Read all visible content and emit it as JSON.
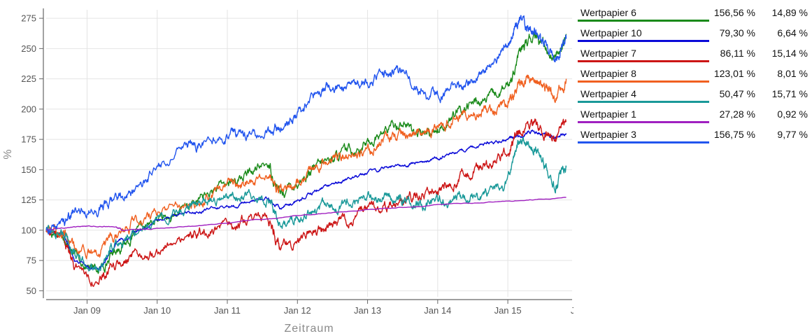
{
  "chart_data": {
    "type": "line",
    "title": "",
    "xlabel": "Zeitraum",
    "ylabel": "%",
    "x_range": [
      "2008-06",
      "2015-12"
    ],
    "ylim": [
      45,
      282
    ],
    "y_ticks": [
      50,
      75,
      100,
      125,
      150,
      175,
      200,
      225,
      250,
      275
    ],
    "x_ticks": [
      "Jan 09",
      "Jan 10",
      "Jan 11",
      "Jan 12",
      "Jan 13",
      "Jan 14",
      "Jan 15",
      "Jan"
    ],
    "x_tick_dates": [
      "2009-01",
      "2010-01",
      "2011-01",
      "2012-01",
      "2013-01",
      "2014-01",
      "2015-01",
      "2016-01"
    ],
    "grid": true,
    "legend_position": "right",
    "series": [
      {
        "name": "Wertpapier 6",
        "color": "#1a8a1a",
        "value1": "156,56 %",
        "value2": "14,89 %",
        "x": [
          "2008-06",
          "2008-09",
          "2008-11",
          "2009-03",
          "2009-06",
          "2009-09",
          "2010-01",
          "2010-06",
          "2010-09",
          "2011-01",
          "2011-04",
          "2011-08",
          "2011-10",
          "2012-01",
          "2012-04",
          "2012-07",
          "2012-10",
          "2013-01",
          "2013-04",
          "2013-07",
          "2013-10",
          "2014-01",
          "2014-04",
          "2014-07",
          "2014-10",
          "2015-01",
          "2015-03",
          "2015-05",
          "2015-07",
          "2015-09",
          "2015-11"
        ],
        "y": [
          100,
          97,
          78,
          66,
          85,
          95,
          108,
          118,
          128,
          138,
          145,
          155,
          130,
          140,
          150,
          160,
          166,
          172,
          182,
          190,
          178,
          184,
          195,
          205,
          208,
          218,
          246,
          258,
          255,
          242,
          262
        ]
      },
      {
        "name": "Wertpapier 10",
        "color": "#0a0ad8",
        "value1": "79,30 %",
        "value2": "6,64 %",
        "x": [
          "2008-06",
          "2008-09",
          "2008-11",
          "2009-03",
          "2009-06",
          "2009-09",
          "2010-01",
          "2010-06",
          "2010-09",
          "2011-01",
          "2011-04",
          "2011-08",
          "2011-10",
          "2012-01",
          "2012-04",
          "2012-07",
          "2012-10",
          "2013-01",
          "2013-04",
          "2013-07",
          "2013-10",
          "2014-01",
          "2014-04",
          "2014-07",
          "2014-10",
          "2015-01",
          "2015-03",
          "2015-05",
          "2015-07",
          "2015-09",
          "2015-11"
        ],
        "y": [
          100,
          97,
          74,
          68,
          88,
          98,
          108,
          113,
          116,
          120,
          123,
          126,
          118,
          124,
          132,
          138,
          143,
          148,
          152,
          154,
          156,
          160,
          164,
          168,
          172,
          175,
          178,
          182,
          179,
          176,
          180
        ]
      },
      {
        "name": "Wertpapier 7",
        "color": "#cc1515",
        "value1": "86,11 %",
        "value2": "15,14 %",
        "x": [
          "2008-06",
          "2008-09",
          "2008-11",
          "2009-03",
          "2009-06",
          "2009-09",
          "2010-01",
          "2010-06",
          "2010-09",
          "2011-01",
          "2011-04",
          "2011-08",
          "2011-10",
          "2012-01",
          "2012-04",
          "2012-07",
          "2012-10",
          "2013-01",
          "2013-04",
          "2013-07",
          "2013-10",
          "2014-01",
          "2014-04",
          "2014-07",
          "2014-10",
          "2015-01",
          "2015-03",
          "2015-05",
          "2015-07",
          "2015-09",
          "2015-11"
        ],
        "y": [
          100,
          95,
          70,
          58,
          70,
          76,
          85,
          93,
          97,
          103,
          106,
          110,
          85,
          93,
          100,
          103,
          110,
          115,
          120,
          126,
          130,
          136,
          140,
          148,
          155,
          165,
          185,
          190,
          182,
          175,
          190
        ]
      },
      {
        "name": "Wertpapier 8",
        "color": "#f06020",
        "value1": "123,01 %",
        "value2": "8,01 %",
        "x": [
          "2008-06",
          "2008-09",
          "2008-11",
          "2009-03",
          "2009-06",
          "2009-09",
          "2010-01",
          "2010-06",
          "2010-09",
          "2011-01",
          "2011-04",
          "2011-08",
          "2011-10",
          "2012-01",
          "2012-04",
          "2012-07",
          "2012-10",
          "2013-01",
          "2013-04",
          "2013-07",
          "2013-10",
          "2014-01",
          "2014-04",
          "2014-07",
          "2014-10",
          "2015-01",
          "2015-03",
          "2015-05",
          "2015-07",
          "2015-09",
          "2015-11"
        ],
        "y": [
          100,
          98,
          85,
          80,
          95,
          105,
          115,
          122,
          128,
          135,
          140,
          147,
          133,
          140,
          152,
          160,
          162,
          165,
          175,
          180,
          182,
          185,
          190,
          196,
          200,
          205,
          220,
          225,
          222,
          210,
          225
        ]
      },
      {
        "name": "Wertpapier 4",
        "color": "#1a9999",
        "value1": "50,47 %",
        "value2": "15,71 %",
        "x": [
          "2008-06",
          "2008-09",
          "2008-11",
          "2009-03",
          "2009-06",
          "2009-09",
          "2010-01",
          "2010-06",
          "2010-09",
          "2011-01",
          "2011-04",
          "2011-08",
          "2011-10",
          "2012-01",
          "2012-04",
          "2012-07",
          "2012-10",
          "2013-01",
          "2013-04",
          "2013-07",
          "2013-10",
          "2014-01",
          "2014-04",
          "2014-07",
          "2014-10",
          "2015-01",
          "2015-03",
          "2015-05",
          "2015-07",
          "2015-09",
          "2015-11"
        ],
        "y": [
          100,
          98,
          78,
          70,
          90,
          100,
          110,
          118,
          123,
          128,
          130,
          126,
          105,
          110,
          116,
          118,
          122,
          125,
          126,
          124,
          122,
          124,
          126,
          128,
          130,
          140,
          175,
          170,
          160,
          135,
          152
        ]
      },
      {
        "name": "Wertpapier 1",
        "color": "#a020c0",
        "value1": "27,28 %",
        "value2": "0,92 %",
        "x": [
          "2008-06",
          "2008-09",
          "2009-01",
          "2009-06",
          "2009-07",
          "2010-01",
          "2011-01",
          "2012-01",
          "2013-01",
          "2014-01",
          "2015-01",
          "2015-11"
        ],
        "y": [
          100,
          102,
          103,
          103,
          100,
          101,
          106,
          112,
          117,
          121,
          124,
          127
        ]
      },
      {
        "name": "Wertpapier 3",
        "color": "#2255ee",
        "value1": "156,75 %",
        "value2": "9,77 %",
        "x": [
          "2008-06",
          "2008-09",
          "2008-11",
          "2009-03",
          "2009-06",
          "2009-09",
          "2010-01",
          "2010-06",
          "2010-09",
          "2011-01",
          "2011-04",
          "2011-08",
          "2011-10",
          "2012-01",
          "2012-04",
          "2012-07",
          "2012-10",
          "2013-01",
          "2013-04",
          "2013-07",
          "2013-10",
          "2014-01",
          "2014-04",
          "2014-07",
          "2014-10",
          "2015-01",
          "2015-03",
          "2015-05",
          "2015-07",
          "2015-09",
          "2015-11"
        ],
        "y": [
          100,
          107,
          115,
          118,
          125,
          132,
          150,
          170,
          172,
          178,
          178,
          180,
          185,
          195,
          210,
          220,
          218,
          222,
          228,
          232,
          212,
          210,
          218,
          225,
          240,
          252,
          275,
          265,
          258,
          240,
          258
        ]
      }
    ]
  }
}
